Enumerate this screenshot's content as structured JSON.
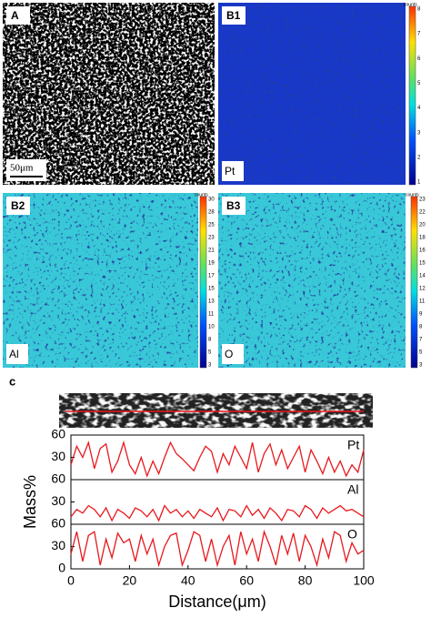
{
  "panels": [
    {
      "label": "A",
      "scale_bar": "50μm"
    },
    {
      "label": "B1",
      "element": "Pt",
      "colorbar": {
        "title": "counts",
        "ticks": [
          8,
          7,
          6,
          5,
          4,
          3,
          2,
          1
        ]
      }
    },
    {
      "label": "B2",
      "element": "Al",
      "colorbar": {
        "title": "counts",
        "ticks": [
          30,
          28,
          25,
          23,
          21,
          19,
          17,
          15,
          13,
          11,
          10,
          8,
          5,
          3
        ]
      }
    },
    {
      "label": "B3",
      "element": "O",
      "colorbar": {
        "title": "counts",
        "ticks": [
          23,
          22,
          20,
          18,
          16,
          15,
          14,
          12,
          11,
          9,
          8,
          7,
          5,
          3
        ]
      }
    }
  ],
  "panel_c_label": "c",
  "chart_data": [
    {
      "type": "line",
      "label": "Pt",
      "color": "#e8191e",
      "x": [
        0,
        2,
        4,
        6,
        8,
        10,
        12,
        14,
        16,
        18,
        20,
        22,
        24,
        26,
        28,
        30,
        32,
        34,
        36,
        38,
        40,
        42,
        44,
        46,
        48,
        50,
        52,
        54,
        56,
        58,
        60,
        62,
        64,
        66,
        68,
        70,
        72,
        74,
        76,
        78,
        80,
        82,
        84,
        86,
        88,
        90,
        92,
        94,
        96,
        98,
        100
      ],
      "values": [
        20,
        45,
        30,
        50,
        15,
        42,
        48,
        10,
        25,
        50,
        20,
        8,
        30,
        5,
        25,
        8,
        30,
        50,
        35,
        28,
        20,
        12,
        30,
        45,
        38,
        10,
        35,
        20,
        45,
        30,
        15,
        50,
        10,
        35,
        48,
        20,
        40,
        15,
        30,
        45,
        10,
        40,
        25,
        8,
        30,
        10,
        25,
        5,
        20,
        10,
        40
      ],
      "xlim": [
        0,
        100
      ],
      "ylim": [
        0,
        60
      ],
      "yticks": [
        30,
        60
      ]
    },
    {
      "type": "line",
      "label": "Al",
      "color": "#e8191e",
      "ylabel": "Mass%",
      "x": [
        0,
        2,
        4,
        6,
        8,
        10,
        12,
        14,
        16,
        18,
        20,
        22,
        24,
        26,
        28,
        30,
        32,
        34,
        36,
        38,
        40,
        42,
        44,
        46,
        48,
        50,
        52,
        54,
        56,
        58,
        60,
        62,
        64,
        66,
        68,
        70,
        72,
        74,
        76,
        78,
        80,
        82,
        84,
        86,
        88,
        90,
        92,
        94,
        96,
        98,
        100
      ],
      "values": [
        10,
        20,
        15,
        25,
        20,
        10,
        22,
        5,
        20,
        15,
        8,
        22,
        18,
        10,
        20,
        5,
        25,
        15,
        20,
        10,
        18,
        8,
        20,
        15,
        10,
        22,
        5,
        20,
        18,
        10,
        25,
        12,
        20,
        8,
        22,
        15,
        5,
        20,
        18,
        10,
        25,
        20,
        8,
        22,
        15,
        20,
        25,
        18,
        20,
        15,
        10
      ],
      "xlim": [
        0,
        100
      ],
      "ylim": [
        0,
        60
      ],
      "yticks": [
        30,
        60
      ]
    },
    {
      "type": "line",
      "label": "O",
      "color": "#e8191e",
      "xlabel": "Distance(μm)",
      "x": [
        0,
        2,
        4,
        6,
        8,
        10,
        12,
        14,
        16,
        18,
        20,
        22,
        24,
        26,
        28,
        30,
        32,
        34,
        36,
        38,
        40,
        42,
        44,
        46,
        48,
        50,
        52,
        54,
        56,
        58,
        60,
        62,
        64,
        66,
        68,
        70,
        72,
        74,
        76,
        78,
        80,
        82,
        84,
        86,
        88,
        90,
        92,
        94,
        96,
        98,
        100
      ],
      "values": [
        20,
        50,
        10,
        45,
        50,
        5,
        40,
        15,
        48,
        35,
        40,
        10,
        45,
        20,
        40,
        5,
        30,
        45,
        48,
        5,
        25,
        50,
        45,
        10,
        40,
        5,
        30,
        45,
        5,
        50,
        20,
        40,
        10,
        50,
        30,
        5,
        45,
        20,
        48,
        10,
        45,
        30,
        5,
        40,
        15,
        50,
        45,
        10,
        35,
        20,
        25
      ],
      "xlim": [
        0,
        100
      ],
      "ylim": [
        0,
        60
      ],
      "yticks": [
        0,
        30,
        60
      ],
      "xticks": [
        0,
        20,
        40,
        60,
        80,
        100
      ]
    }
  ]
}
